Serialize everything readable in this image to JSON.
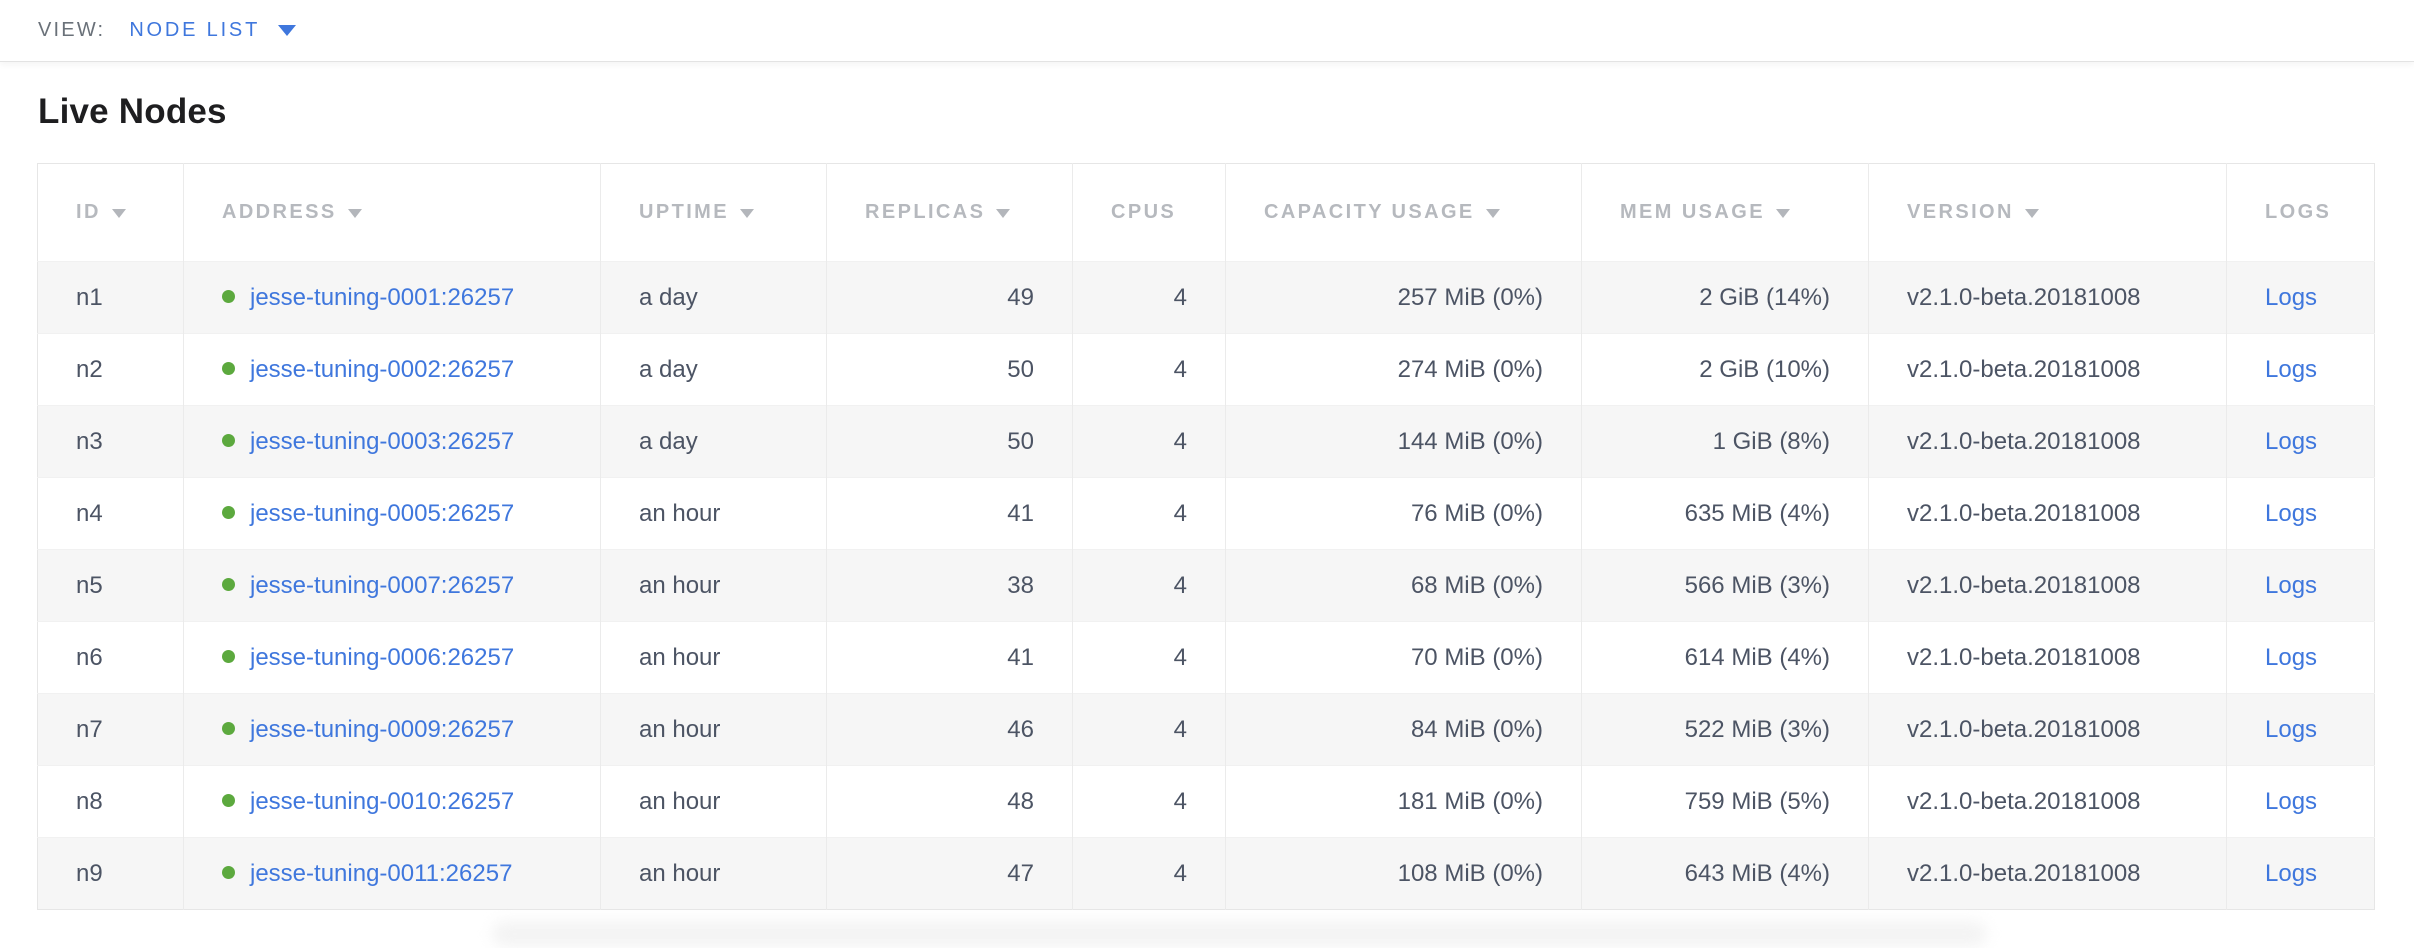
{
  "view_bar": {
    "label": "VIEW:",
    "selected": "NODE LIST"
  },
  "page": {
    "title": "Live Nodes"
  },
  "table": {
    "columns": [
      {
        "key": "id",
        "label": "ID",
        "sortable": true,
        "align": "left"
      },
      {
        "key": "address",
        "label": "ADDRESS",
        "sortable": true,
        "align": "left"
      },
      {
        "key": "uptime",
        "label": "UPTIME",
        "sortable": true,
        "align": "left"
      },
      {
        "key": "replicas",
        "label": "REPLICAS",
        "sortable": true,
        "align": "right"
      },
      {
        "key": "cpus",
        "label": "CPUS",
        "sortable": false,
        "align": "right"
      },
      {
        "key": "capacity",
        "label": "CAPACITY USAGE",
        "sortable": true,
        "align": "right"
      },
      {
        "key": "mem",
        "label": "MEM USAGE",
        "sortable": true,
        "align": "right"
      },
      {
        "key": "version",
        "label": "VERSION",
        "sortable": true,
        "align": "left"
      },
      {
        "key": "logs",
        "label": "LOGS",
        "sortable": false,
        "align": "left"
      }
    ],
    "rows": [
      {
        "id": "n1",
        "address": "jesse-tuning-0001:26257",
        "uptime": "a day",
        "replicas": "49",
        "cpus": "4",
        "capacity": "257 MiB (0%)",
        "mem": "2 GiB (14%)",
        "version": "v2.1.0-beta.20181008",
        "logs": "Logs"
      },
      {
        "id": "n2",
        "address": "jesse-tuning-0002:26257",
        "uptime": "a day",
        "replicas": "50",
        "cpus": "4",
        "capacity": "274 MiB (0%)",
        "mem": "2 GiB (10%)",
        "version": "v2.1.0-beta.20181008",
        "logs": "Logs"
      },
      {
        "id": "n3",
        "address": "jesse-tuning-0003:26257",
        "uptime": "a day",
        "replicas": "50",
        "cpus": "4",
        "capacity": "144 MiB (0%)",
        "mem": "1 GiB (8%)",
        "version": "v2.1.0-beta.20181008",
        "logs": "Logs"
      },
      {
        "id": "n4",
        "address": "jesse-tuning-0005:26257",
        "uptime": "an hour",
        "replicas": "41",
        "cpus": "4",
        "capacity": "76 MiB (0%)",
        "mem": "635 MiB (4%)",
        "version": "v2.1.0-beta.20181008",
        "logs": "Logs"
      },
      {
        "id": "n5",
        "address": "jesse-tuning-0007:26257",
        "uptime": "an hour",
        "replicas": "38",
        "cpus": "4",
        "capacity": "68 MiB (0%)",
        "mem": "566 MiB (3%)",
        "version": "v2.1.0-beta.20181008",
        "logs": "Logs"
      },
      {
        "id": "n6",
        "address": "jesse-tuning-0006:26257",
        "uptime": "an hour",
        "replicas": "41",
        "cpus": "4",
        "capacity": "70 MiB (0%)",
        "mem": "614 MiB (4%)",
        "version": "v2.1.0-beta.20181008",
        "logs": "Logs"
      },
      {
        "id": "n7",
        "address": "jesse-tuning-0009:26257",
        "uptime": "an hour",
        "replicas": "46",
        "cpus": "4",
        "capacity": "84 MiB (0%)",
        "mem": "522 MiB (3%)",
        "version": "v2.1.0-beta.20181008",
        "logs": "Logs"
      },
      {
        "id": "n8",
        "address": "jesse-tuning-0010:26257",
        "uptime": "an hour",
        "replicas": "48",
        "cpus": "4",
        "capacity": "181 MiB (0%)",
        "mem": "759 MiB (5%)",
        "version": "v2.1.0-beta.20181008",
        "logs": "Logs"
      },
      {
        "id": "n9",
        "address": "jesse-tuning-0011:26257",
        "uptime": "an hour",
        "replicas": "47",
        "cpus": "4",
        "capacity": "108 MiB (0%)",
        "mem": "643 MiB (4%)",
        "version": "v2.1.0-beta.20181008",
        "logs": "Logs"
      }
    ]
  },
  "colors": {
    "link_blue": "#3f77dd",
    "node_live_dot_green": "#5ca93e",
    "header_text_gray": "#b6b9be",
    "body_text_slate": "#4c5464",
    "row_stripe": "#f6f6f6"
  }
}
